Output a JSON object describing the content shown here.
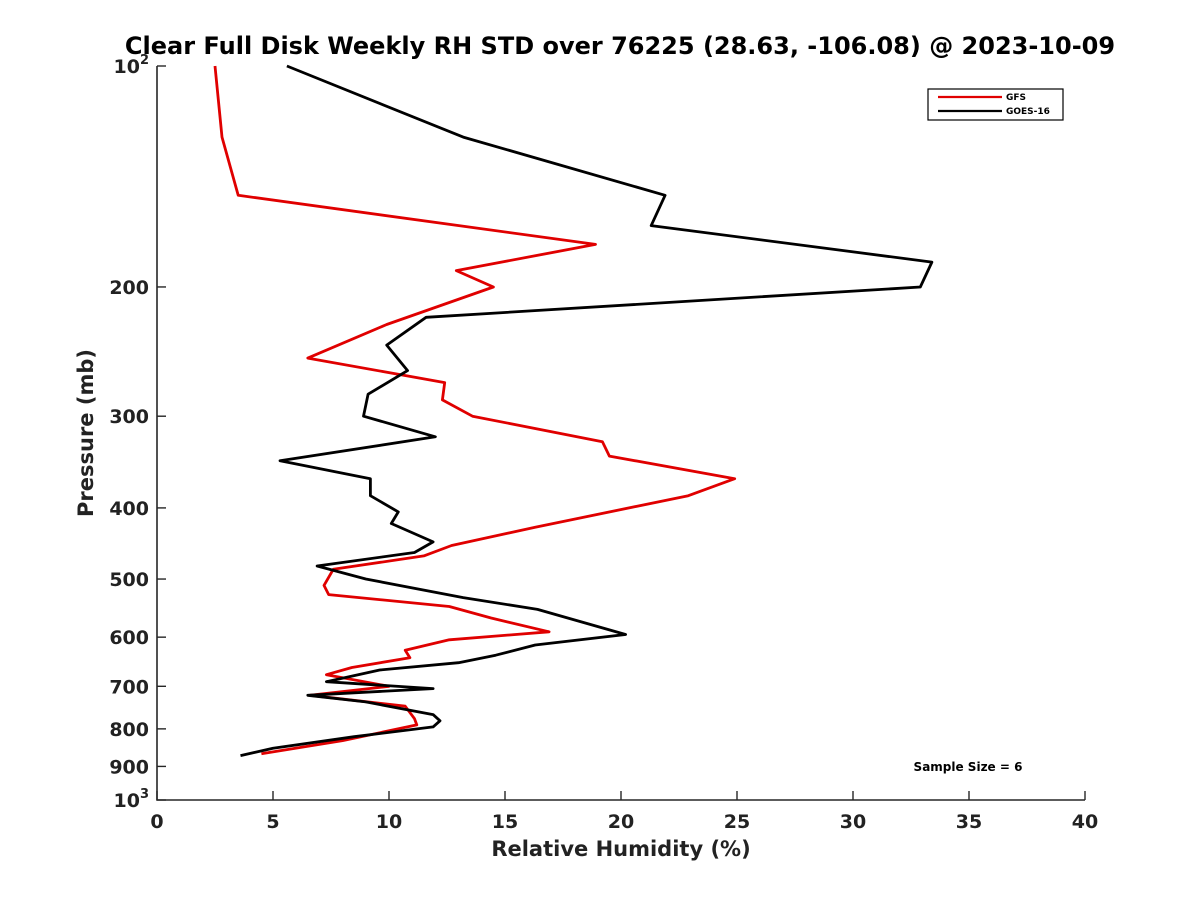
{
  "chart_data": {
    "type": "line",
    "title": "Clear Full Disk Weekly RH STD over 76225 (28.63, -106.08) @ 2023-10-09",
    "xlabel": "Relative Humidity (%)",
    "ylabel": "Pressure (mb)",
    "xlim": [
      0,
      40
    ],
    "ylim": [
      100,
      1000
    ],
    "y_scale": "log",
    "y_reversed": true,
    "grid": false,
    "legend_position": "top-right",
    "x_ticks": [
      "0",
      "5",
      "10",
      "15",
      "20",
      "25",
      "30",
      "35",
      "40"
    ],
    "y_tick_values": [
      100,
      200,
      300,
      400,
      500,
      600,
      700,
      800,
      900,
      1000
    ],
    "y_tick_labels": [
      {
        "base": "10",
        "exp": "2"
      },
      {
        "base": "200",
        "exp": ""
      },
      {
        "base": "300",
        "exp": ""
      },
      {
        "base": "400",
        "exp": ""
      },
      {
        "base": "500",
        "exp": ""
      },
      {
        "base": "600",
        "exp": ""
      },
      {
        "base": "700",
        "exp": ""
      },
      {
        "base": "800",
        "exp": ""
      },
      {
        "base": "900",
        "exp": ""
      },
      {
        "base": "10",
        "exp": "3"
      }
    ],
    "series": [
      {
        "name": "GFS",
        "color": "#e00000",
        "points": [
          [
            2.5,
            100
          ],
          [
            2.8,
            125
          ],
          [
            3.5,
            150
          ],
          [
            18.9,
            175
          ],
          [
            12.9,
            190
          ],
          [
            14.5,
            200
          ],
          [
            9.9,
            225
          ],
          [
            6.5,
            250
          ],
          [
            12.4,
            270
          ],
          [
            12.3,
            285
          ],
          [
            13.6,
            300
          ],
          [
            19.2,
            325
          ],
          [
            19.5,
            340
          ],
          [
            24.9,
            365
          ],
          [
            22.9,
            385
          ],
          [
            16.3,
            425
          ],
          [
            12.7,
            450
          ],
          [
            11.5,
            465
          ],
          [
            7.6,
            485
          ],
          [
            7.2,
            510
          ],
          [
            7.4,
            525
          ],
          [
            12.6,
            545
          ],
          [
            14.4,
            565
          ],
          [
            16.9,
            590
          ],
          [
            12.6,
            605
          ],
          [
            10.7,
            625
          ],
          [
            10.9,
            640
          ],
          [
            8.4,
            660
          ],
          [
            7.3,
            675
          ],
          [
            10.0,
            700
          ],
          [
            6.6,
            720
          ],
          [
            10.7,
            745
          ],
          [
            11.1,
            775
          ],
          [
            11.2,
            790
          ],
          [
            8.0,
            830
          ],
          [
            4.5,
            865
          ]
        ]
      },
      {
        "name": "GOES-16",
        "color": "#000000",
        "points": [
          [
            5.6,
            100
          ],
          [
            13.2,
            125
          ],
          [
            21.9,
            150
          ],
          [
            21.3,
            165
          ],
          [
            33.4,
            185
          ],
          [
            32.9,
            200
          ],
          [
            11.6,
            220
          ],
          [
            9.9,
            240
          ],
          [
            10.8,
            260
          ],
          [
            9.1,
            280
          ],
          [
            8.9,
            300
          ],
          [
            12.0,
            320
          ],
          [
            5.3,
            345
          ],
          [
            9.2,
            365
          ],
          [
            9.2,
            385
          ],
          [
            10.4,
            405
          ],
          [
            10.1,
            420
          ],
          [
            11.9,
            445
          ],
          [
            11.1,
            460
          ],
          [
            6.9,
            480
          ],
          [
            9.0,
            500
          ],
          [
            13.2,
            530
          ],
          [
            16.4,
            550
          ],
          [
            20.2,
            595
          ],
          [
            16.3,
            615
          ],
          [
            14.6,
            635
          ],
          [
            13.0,
            650
          ],
          [
            9.6,
            665
          ],
          [
            7.3,
            690
          ],
          [
            11.9,
            705
          ],
          [
            6.5,
            720
          ],
          [
            9.0,
            735
          ],
          [
            11.9,
            765
          ],
          [
            12.2,
            780
          ],
          [
            11.9,
            795
          ],
          [
            8.5,
            820
          ],
          [
            5.0,
            850
          ],
          [
            3.6,
            870
          ]
        ]
      }
    ],
    "annotations": [
      {
        "text": "Sample Size = 6"
      }
    ]
  }
}
